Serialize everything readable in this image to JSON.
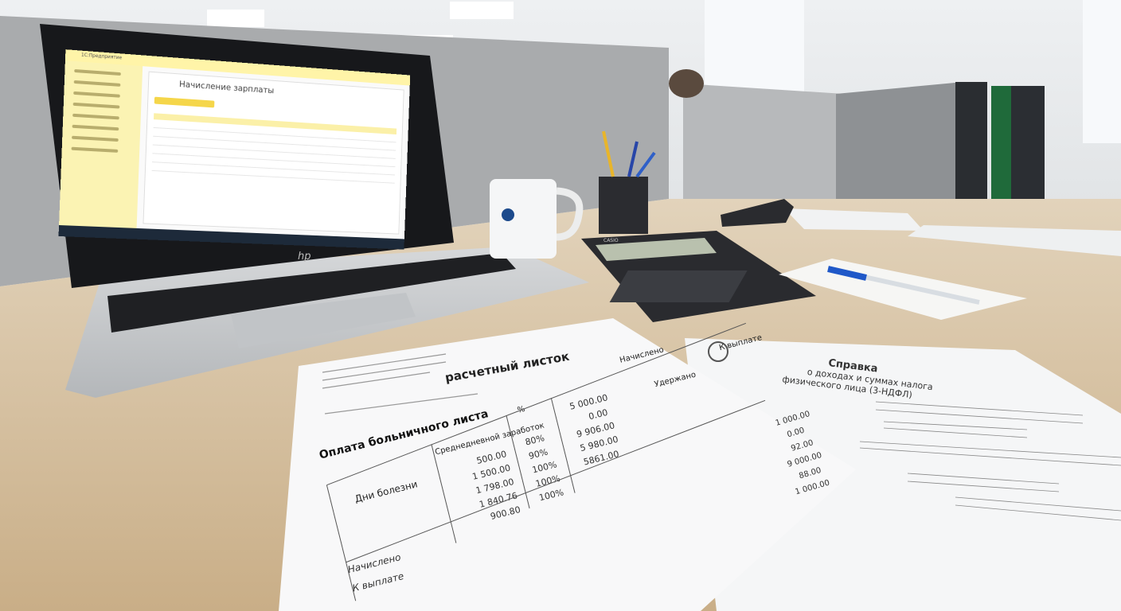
{
  "laptop": {
    "brand": "hp",
    "screen": {
      "app_name": "1С:Предприятие",
      "page_title": "Начисление зарплаты"
    }
  },
  "calculator": {
    "brand": "CASIO"
  },
  "payslip": {
    "title": "расчетный листок",
    "section_title": "Оплата больничного листа",
    "columns": [
      "Дни болезни",
      "Среднедневной заработок",
      "%",
      "Начислено",
      "Удержано",
      "К выплате"
    ],
    "avg_earnings": [
      "500.00",
      "1 500.00",
      "1 798.00",
      "1 840.76",
      "900.80"
    ],
    "percents": [
      "80%",
      "90%",
      "100%",
      "100%",
      "100%"
    ],
    "accrued": [
      "5 000.00",
      "0.00",
      "9 906.00",
      "5 980.00",
      "5861.00"
    ],
    "footer_labels": [
      "Начислено",
      "К выплате"
    ]
  },
  "tax_form": {
    "title": "Справка",
    "subtitle_line1": "о доходах и суммах налога",
    "subtitle_line2": "физического лица (3-НДФЛ)",
    "payouts": [
      "1 000.00",
      "0.00",
      "92.00",
      "9 000.00",
      "88.00",
      "1 000.00"
    ]
  },
  "colors": {
    "desk": "#d7c2a2",
    "sidebar": "#fbf3b3",
    "accent": "#f5d64a"
  }
}
